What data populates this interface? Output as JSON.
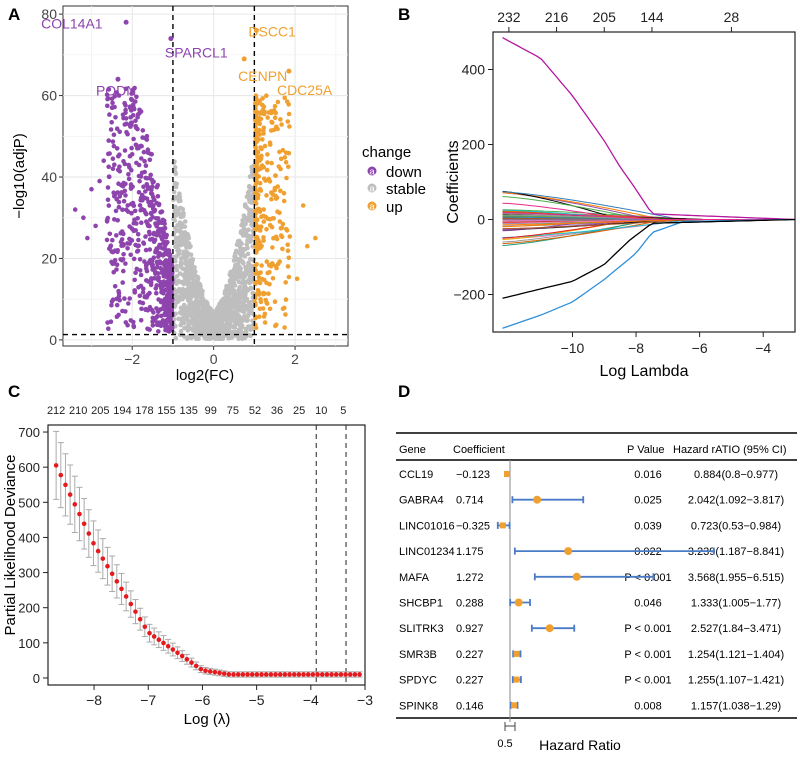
{
  "colors": {
    "down": "#8E44AD",
    "stable": "#BEBEBE",
    "up": "#F0A030",
    "grid": "#E6E6E6",
    "red": "#E41A1C",
    "ci": "#4A7BC8"
  },
  "panelA": {
    "letter": "A",
    "xlabel": "log2(FC)",
    "ylabel": "−log10(adjP)",
    "xticks": [
      "−2",
      "0",
      "2"
    ],
    "yticks": [
      "0",
      "20",
      "40",
      "60",
      "80"
    ],
    "legend": {
      "title": "change",
      "items": [
        {
          "key": "a",
          "label": "down"
        },
        {
          "key": "a",
          "label": "stable"
        },
        {
          "key": "a",
          "label": "up"
        }
      ]
    },
    "genes": [
      {
        "name": "COL14A1",
        "x": -2.15,
        "y": 78,
        "color": "down"
      },
      {
        "name": "SPARCL1",
        "x": -1.05,
        "y": 74,
        "color": "down"
      },
      {
        "name": "PODN",
        "x": -2.35,
        "y": 64,
        "color": "down"
      },
      {
        "name": "DSCC1",
        "x": 1.05,
        "y": 76,
        "color": "up"
      },
      {
        "name": "CENPN",
        "x": 0.75,
        "y": 69,
        "color": "up"
      },
      {
        "name": "CDC25A",
        "x": 1.85,
        "y": 66,
        "color": "up"
      }
    ]
  },
  "panelB": {
    "letter": "B",
    "xlabel": "Log Lambda",
    "ylabel": "Coefficients",
    "xticks": [
      "−10",
      "−8",
      "−6",
      "−4"
    ],
    "yticks": [
      "−200",
      "0",
      "200",
      "400"
    ],
    "topticks": [
      "232",
      "216",
      "205",
      "144",
      "28"
    ]
  },
  "panelC": {
    "letter": "C",
    "xlabel": "Log (λ)",
    "ylabel": "Partial Likelihood Deviance",
    "xticks": [
      "−8",
      "−7",
      "−6",
      "−5",
      "−4",
      "−3"
    ],
    "yticks": [
      "0",
      "100",
      "200",
      "300",
      "400",
      "500",
      "600",
      "700"
    ],
    "topticks": [
      "212",
      "210",
      "205",
      "194",
      "178",
      "155",
      "135",
      "99",
      "75",
      "52",
      "36",
      "25",
      "10",
      "5"
    ]
  },
  "panelD": {
    "letter": "D",
    "headers": {
      "gene": "Gene",
      "coef": "Coefficient",
      "p": "P Value",
      "hr": "Hazard rATIO (95% CI)"
    },
    "axis_label": "Hazard Ratio",
    "axis_tick": "0.5",
    "rows": [
      {
        "gene": "CCL19",
        "coef": "−0.123",
        "p": "0.016",
        "hr_text": "0.884(0.8−0.977)",
        "hr": 0.884,
        "lo": 0.8,
        "hi": 0.977
      },
      {
        "gene": "GABRA4",
        "coef": "0.714",
        "p": "0.025",
        "hr_text": "2.042(1.092−3.817)",
        "hr": 2.042,
        "lo": 1.092,
        "hi": 3.817
      },
      {
        "gene": "LINC01016",
        "coef": "−0.325",
        "p": "0.039",
        "hr_text": "0.723(0.53−0.984)",
        "hr": 0.723,
        "lo": 0.53,
        "hi": 0.984
      },
      {
        "gene": "LINC01234",
        "coef": "1.175",
        "p": "0.022",
        "hr_text": "3.239(1.187−8.841)",
        "hr": 3.239,
        "lo": 1.187,
        "hi": 8.841
      },
      {
        "gene": "MAFA",
        "coef": "1.272",
        "p": "P < 0.001",
        "hr_text": "3.568(1.955−6.515)",
        "hr": 3.568,
        "lo": 1.955,
        "hi": 6.515
      },
      {
        "gene": "SHCBP1",
        "coef": "0.288",
        "p": "0.046",
        "hr_text": "1.333(1.005−1.77)",
        "hr": 1.333,
        "lo": 1.005,
        "hi": 1.77
      },
      {
        "gene": "SLITRK3",
        "coef": "0.927",
        "p": "P < 0.001",
        "hr_text": "2.527(1.84−3.471)",
        "hr": 2.527,
        "lo": 1.84,
        "hi": 3.471
      },
      {
        "gene": "SMR3B",
        "coef": "0.227",
        "p": "P < 0.001",
        "hr_text": "1.254(1.121−1.404)",
        "hr": 1.254,
        "lo": 1.121,
        "hi": 1.404
      },
      {
        "gene": "SPDYC",
        "coef": "0.227",
        "p": "P < 0.001",
        "hr_text": "1.255(1.107−1.421)",
        "hr": 1.255,
        "lo": 1.107,
        "hi": 1.421
      },
      {
        "gene": "SPINK8",
        "coef": "0.146",
        "p": "0.008",
        "hr_text": "1.157(1.038−1.29)",
        "hr": 1.157,
        "lo": 1.038,
        "hi": 1.29
      }
    ]
  },
  "chart_data": [
    {
      "type": "scatter",
      "title": "",
      "xlabel": "log2(FC)",
      "ylabel": "−log10(adjP)",
      "xlim": [
        -3.7,
        3.3
      ],
      "ylim": [
        -1.5,
        82
      ],
      "thresholds": {
        "log2fc": [
          -1,
          1
        ],
        "neglog10p": 1.3
      },
      "legend": [
        "down",
        "stable",
        "up"
      ],
      "labeled_points": [
        {
          "label": "COL14A1",
          "x": -2.15,
          "y": 78
        },
        {
          "label": "SPARCL1",
          "x": -1.05,
          "y": 74
        },
        {
          "label": "PODN",
          "x": -2.35,
          "y": 64
        },
        {
          "label": "DSCC1",
          "x": 1.05,
          "y": 76
        },
        {
          "label": "CENPN",
          "x": 0.75,
          "y": 69
        },
        {
          "label": "CDC25A",
          "x": 1.85,
          "y": 66
        }
      ]
    },
    {
      "type": "line",
      "title": "",
      "xlabel": "Log Lambda",
      "ylabel": "Coefficients",
      "xlim": [
        -12.5,
        -3
      ],
      "ylim": [
        -300,
        500
      ],
      "top_axis": [
        "232",
        "216",
        "205",
        "144",
        "28"
      ],
      "top_axis_at": [
        -12,
        -10.5,
        -9,
        -7.5,
        -5
      ],
      "series": [
        {
          "name": "max-positive",
          "x": [
            -12.2,
            -11,
            -10,
            -9,
            -8.5,
            -8,
            -7.5,
            -3
          ],
          "y": [
            485,
            430,
            330,
            210,
            140,
            80,
            15,
            0
          ]
        },
        {
          "name": "max-negative",
          "x": [
            -12.2,
            -11,
            -10,
            -9,
            -8,
            -7.5,
            -6.5,
            -3
          ],
          "y": [
            -290,
            -255,
            -220,
            -160,
            -90,
            -35,
            -5,
            0
          ]
        },
        {
          "name": "second-negative",
          "x": [
            -12.2,
            -11,
            -10,
            -9,
            -8.2,
            -7.5,
            -3
          ],
          "y": [
            -210,
            -185,
            -165,
            -120,
            -55,
            -10,
            0
          ]
        }
      ]
    },
    {
      "type": "line",
      "title": "",
      "xlabel": "Log (λ)",
      "ylabel": "Partial Likelihood Deviance",
      "xlim": [
        -8.85,
        -3
      ],
      "ylim": [
        -20,
        720
      ],
      "top_axis": [
        "212",
        "210",
        "205",
        "194",
        "178",
        "155",
        "135",
        "99",
        "75",
        "52",
        "36",
        "25",
        "10",
        "5"
      ],
      "cv_mean_curve": {
        "x": [
          -8.7,
          -8,
          -7,
          -6,
          -5.5,
          -3.1
        ],
        "y": [
          605,
          380,
          130,
          22,
          10,
          10
        ]
      },
      "vlines": [
        -3.9,
        -3.35
      ]
    },
    {
      "type": "table",
      "title": "",
      "xlabel": "Hazard Ratio",
      "columns": [
        "Gene",
        "Coefficient",
        "P Value",
        "Hazard rATIO (95% CI)"
      ],
      "reference_tick": 0.5
    }
  ]
}
